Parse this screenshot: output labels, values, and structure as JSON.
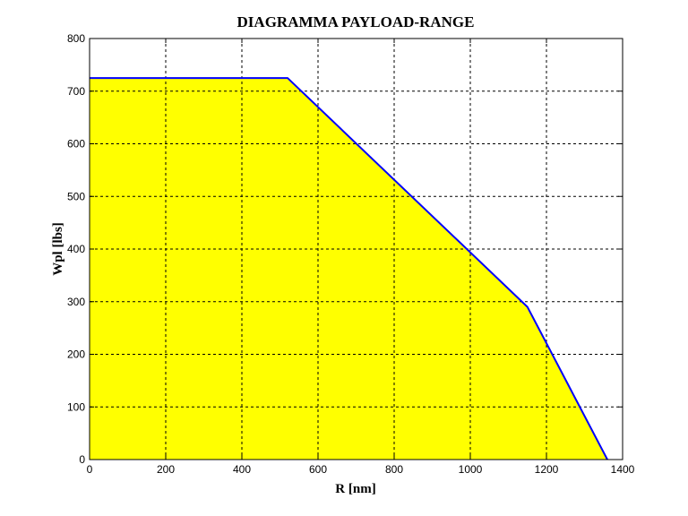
{
  "chart_data": {
    "type": "area",
    "title": "DIAGRAMMA PAYLOAD-RANGE",
    "xlabel": "R  [nm]",
    "ylabel": "Wpl [lbs]",
    "xlim": [
      0,
      1400
    ],
    "ylim": [
      0,
      800
    ],
    "xticks": [
      0,
      200,
      400,
      600,
      800,
      1000,
      1200,
      1400
    ],
    "yticks": [
      0,
      100,
      200,
      300,
      400,
      500,
      600,
      700,
      800
    ],
    "grid": true,
    "grid_style": "dashed",
    "series": [
      {
        "x": [
          0,
          520,
          1150,
          1360
        ],
        "y": [
          725,
          725,
          290,
          0
        ],
        "line_color": "#0000ff",
        "fill_color": "#ffff00"
      }
    ]
  }
}
